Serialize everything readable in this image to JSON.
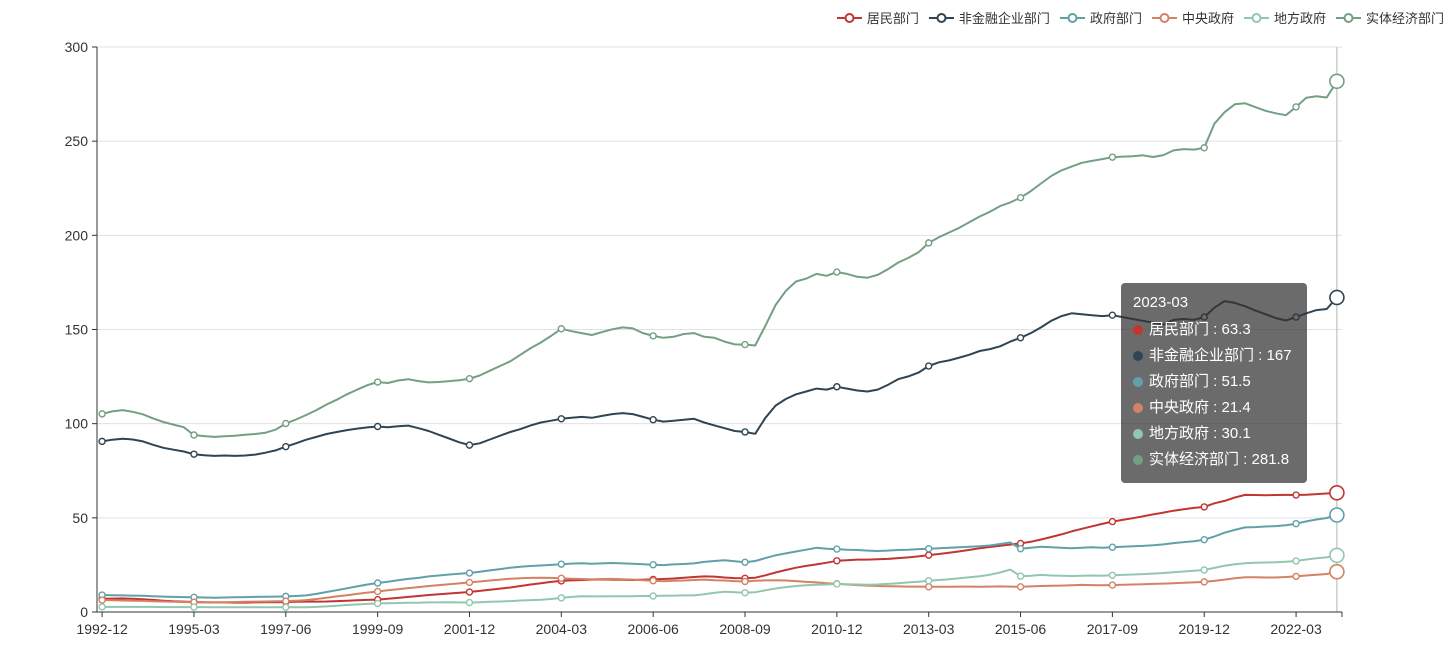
{
  "accent_colors": {
    "axis": "#333333",
    "grid_line": "#e0e0e6",
    "axis_pointer": "#b4b4b4",
    "tooltip_bg": "rgba(50,50,50,0.72)"
  },
  "legend": {
    "items": [
      {
        "label": "居民部门",
        "color": "#c23531"
      },
      {
        "label": "非金融企业部门",
        "color": "#2f4554"
      },
      {
        "label": "政府部门",
        "color": "#61a0a8"
      },
      {
        "label": "中央政府",
        "color": "#d48265"
      },
      {
        "label": "地方政府",
        "color": "#91c7ae"
      },
      {
        "label": "实体经济部门",
        "color": "#749f83"
      }
    ]
  },
  "tooltip": {
    "title": "2023-03",
    "separator": " : ",
    "rows": [
      {
        "label": "居民部门",
        "value": "63.3",
        "color": "#c23531"
      },
      {
        "label": "非金融企业部门",
        "value": "167",
        "color": "#2f4554"
      },
      {
        "label": "政府部门",
        "value": "51.5",
        "color": "#61a0a8"
      },
      {
        "label": "中央政府",
        "value": "21.4",
        "color": "#d48265"
      },
      {
        "label": "地方政府",
        "value": "30.1",
        "color": "#91c7ae"
      },
      {
        "label": "实体经济部门",
        "value": "281.8",
        "color": "#749f83"
      }
    ]
  },
  "chart_data": {
    "type": "line",
    "title": "",
    "xlabel": "",
    "ylabel": "",
    "grid": true,
    "legend_position": "top-right",
    "x_axis": {
      "type": "category-quarterly",
      "first_period": "1992-12",
      "last_period": "2023-03",
      "n_points": 122,
      "ticks": [
        {
          "index": 0,
          "label": "1992-12"
        },
        {
          "index": 9,
          "label": "1995-03"
        },
        {
          "index": 18,
          "label": "1997-06"
        },
        {
          "index": 27,
          "label": "1999-09"
        },
        {
          "index": 36,
          "label": "2001-12"
        },
        {
          "index": 45,
          "label": "2004-03"
        },
        {
          "index": 54,
          "label": "2006-06"
        },
        {
          "index": 63,
          "label": "2008-09"
        },
        {
          "index": 72,
          "label": "2010-12"
        },
        {
          "index": 81,
          "label": "2013-03"
        },
        {
          "index": 90,
          "label": "2015-06"
        },
        {
          "index": 99,
          "label": "2017-09"
        },
        {
          "index": 108,
          "label": "2019-12"
        },
        {
          "index": 117,
          "label": "2022-03"
        }
      ]
    },
    "y_axis": {
      "min": 0,
      "max": 300,
      "interval": 50,
      "tick_labels": [
        "0",
        "50",
        "100",
        "150",
        "200",
        "250",
        "300"
      ]
    },
    "highlight_index": 121,
    "series": [
      {
        "name": "居民部门",
        "color": "#c23531",
        "values": [
          7.0,
          7.1,
          7.2,
          7.0,
          6.8,
          6.4,
          6.0,
          5.7,
          5.5,
          5.3,
          5.2,
          5.1,
          5.1,
          5.0,
          5.0,
          5.1,
          5.2,
          5.2,
          5.3,
          5.4,
          5.5,
          5.5,
          5.6,
          5.8,
          6.0,
          6.2,
          6.4,
          6.6,
          7.0,
          7.5,
          8.0,
          8.5,
          9.0,
          9.4,
          9.8,
          10.2,
          10.6,
          11.2,
          11.8,
          12.4,
          13.0,
          13.8,
          14.6,
          15.3,
          16.0,
          16.5,
          16.8,
          17.0,
          17.2,
          17.3,
          17.2,
          17.1,
          17.0,
          17.2,
          17.3,
          17.5,
          17.8,
          18.2,
          18.6,
          18.9,
          18.8,
          18.3,
          18.0,
          17.9,
          18.2,
          19.5,
          21.0,
          22.3,
          23.5,
          24.5,
          25.3,
          26.2,
          27.2,
          27.5,
          27.8,
          27.8,
          28.0,
          28.2,
          28.6,
          29.0,
          29.5,
          30.2,
          30.8,
          31.5,
          32.2,
          33.0,
          33.8,
          34.5,
          35.2,
          35.8,
          36.4,
          37.3,
          38.5,
          39.8,
          41.2,
          42.8,
          44.2,
          45.5,
          46.8,
          48.0,
          48.9,
          49.8,
          50.8,
          51.8,
          52.8,
          53.8,
          54.6,
          55.3,
          55.8,
          57.7,
          59.0,
          60.8,
          62.2,
          62.1,
          62.0,
          62.1,
          62.2,
          62.1,
          62.3,
          62.6,
          62.9,
          63.3
        ]
      },
      {
        "name": "非金融企业部门",
        "color": "#2f4554",
        "values": [
          90.6,
          91.5,
          92.0,
          91.6,
          90.6,
          88.8,
          87.2,
          86.2,
          85.2,
          83.8,
          83.2,
          82.9,
          83.1,
          82.9,
          83.1,
          83.6,
          84.6,
          85.8,
          87.8,
          89.6,
          91.5,
          93.0,
          94.5,
          95.6,
          96.6,
          97.4,
          98.0,
          98.5,
          98.1,
          98.6,
          99.0,
          97.6,
          96.1,
          94.1,
          92.1,
          90.1,
          88.6,
          89.6,
          91.6,
          93.6,
          95.6,
          97.1,
          99.1,
          100.6,
          101.6,
          102.6,
          103.1,
          103.6,
          103.1,
          104.1,
          105.1,
          105.6,
          105.1,
          103.6,
          102.1,
          101.1,
          101.6,
          102.1,
          102.6,
          100.6,
          99.1,
          97.6,
          96.1,
          95.6,
          94.6,
          103.1,
          109.6,
          113.1,
          115.6,
          117.1,
          118.6,
          118.1,
          119.6,
          118.6,
          117.6,
          117.1,
          118.1,
          120.6,
          123.6,
          125.1,
          127.1,
          130.6,
          132.6,
          133.6,
          135.1,
          136.6,
          138.6,
          139.6,
          141.1,
          143.6,
          145.6,
          148.1,
          151.1,
          154.6,
          157.1,
          158.6,
          158.1,
          157.6,
          157.1,
          157.6,
          156.6,
          155.6,
          154.6,
          153.6,
          152.6,
          155.1,
          155.6,
          155.1,
          156.6,
          161.6,
          165.1,
          164.1,
          162.3,
          160.1,
          158.1,
          156.1,
          154.8,
          156.6,
          158.6,
          160.3,
          160.9,
          167.0
        ]
      },
      {
        "name": "政府部门",
        "color": "#61a0a8",
        "values": [
          9.0,
          8.9,
          8.8,
          8.7,
          8.6,
          8.4,
          8.2,
          8.0,
          7.9,
          7.8,
          7.7,
          7.6,
          7.7,
          7.8,
          7.9,
          8.0,
          8.1,
          8.2,
          8.3,
          8.5,
          8.8,
          9.6,
          10.6,
          11.6,
          12.6,
          13.6,
          14.6,
          15.4,
          16.1,
          16.9,
          17.6,
          18.1,
          18.9,
          19.4,
          19.9,
          20.3,
          20.7,
          21.4,
          22.1,
          22.8,
          23.5,
          24.0,
          24.4,
          24.7,
          25.0,
          25.4,
          25.7,
          25.9,
          25.6,
          25.8,
          26.0,
          25.8,
          25.6,
          25.4,
          25.1,
          24.9,
          25.3,
          25.5,
          25.8,
          26.6,
          27.1,
          27.5,
          26.9,
          26.4,
          27.1,
          28.6,
          30.1,
          31.1,
          32.1,
          33.1,
          34.1,
          33.6,
          33.4,
          33.1,
          32.9,
          32.6,
          32.4,
          32.6,
          32.9,
          33.1,
          33.4,
          33.6,
          33.9,
          34.1,
          34.4,
          34.6,
          34.9,
          35.3,
          36.1,
          36.9,
          33.6,
          34.1,
          34.6,
          34.4,
          34.1,
          33.9,
          34.1,
          34.4,
          34.1,
          34.4,
          34.6,
          34.9,
          35.1,
          35.4,
          35.9,
          36.6,
          37.1,
          37.6,
          38.4,
          40.1,
          42.1,
          43.6,
          44.9,
          45.1,
          45.4,
          45.6,
          46.1,
          46.9,
          48.1,
          49.1,
          49.9,
          51.5
        ]
      },
      {
        "name": "中央政府",
        "color": "#d48265",
        "values": [
          6.3,
          6.2,
          6.1,
          6.0,
          5.9,
          5.7,
          5.6,
          5.4,
          5.3,
          5.2,
          5.1,
          5.1,
          5.2,
          5.3,
          5.4,
          5.5,
          5.6,
          5.7,
          5.8,
          6.0,
          6.3,
          6.9,
          7.6,
          8.3,
          8.9,
          9.6,
          10.3,
          10.9,
          11.5,
          12.1,
          12.7,
          13.2,
          13.8,
          14.3,
          14.7,
          15.2,
          15.7,
          16.2,
          16.7,
          17.2,
          17.7,
          17.9,
          18.1,
          18.2,
          18.1,
          17.9,
          17.7,
          17.5,
          17.3,
          17.5,
          17.6,
          17.4,
          17.2,
          16.9,
          16.6,
          16.3,
          16.6,
          16.7,
          17.0,
          17.2,
          16.9,
          16.7,
          16.4,
          16.2,
          16.6,
          16.8,
          16.9,
          16.7,
          16.4,
          16.0,
          15.7,
          15.3,
          15.0,
          14.6,
          14.3,
          14.0,
          13.8,
          13.7,
          13.6,
          13.5,
          13.5,
          13.4,
          13.4,
          13.4,
          13.5,
          13.5,
          13.4,
          13.5,
          13.6,
          13.5,
          13.4,
          13.6,
          13.8,
          13.9,
          14.0,
          14.2,
          14.4,
          14.3,
          14.2,
          14.3,
          14.5,
          14.6,
          14.7,
          14.9,
          15.1,
          15.3,
          15.5,
          15.7,
          16.0,
          16.5,
          17.2,
          17.9,
          18.4,
          18.4,
          18.3,
          18.3,
          18.6,
          18.9,
          19.4,
          19.8,
          20.2,
          21.4
        ]
      },
      {
        "name": "地方政府",
        "color": "#91c7ae",
        "values": [
          2.7,
          2.7,
          2.7,
          2.7,
          2.7,
          2.7,
          2.6,
          2.6,
          2.6,
          2.6,
          2.6,
          2.5,
          2.5,
          2.5,
          2.5,
          2.5,
          2.5,
          2.5,
          2.5,
          2.5,
          2.5,
          2.7,
          3.0,
          3.3,
          3.7,
          4.0,
          4.3,
          4.5,
          4.6,
          4.8,
          4.9,
          4.9,
          5.1,
          5.1,
          5.2,
          5.1,
          5.0,
          5.2,
          5.4,
          5.6,
          5.8,
          6.1,
          6.3,
          6.5,
          6.9,
          7.5,
          8.0,
          8.4,
          8.3,
          8.3,
          8.4,
          8.4,
          8.4,
          8.5,
          8.5,
          8.6,
          8.7,
          8.8,
          8.8,
          9.4,
          10.2,
          10.8,
          10.5,
          10.2,
          10.5,
          11.5,
          12.5,
          13.2,
          13.8,
          14.2,
          14.5,
          14.6,
          14.9,
          14.7,
          14.6,
          14.5,
          14.6,
          14.9,
          15.3,
          15.7,
          16.1,
          16.6,
          17.0,
          17.4,
          17.9,
          18.4,
          19.0,
          19.8,
          21.0,
          22.5,
          19.0,
          19.3,
          19.7,
          19.4,
          19.2,
          19.1,
          19.3,
          19.4,
          19.3,
          19.5,
          19.7,
          19.9,
          20.1,
          20.4,
          20.7,
          21.1,
          21.5,
          21.9,
          22.3,
          23.4,
          24.6,
          25.4,
          25.9,
          26.1,
          26.3,
          26.4,
          26.7,
          27.1,
          27.9,
          28.5,
          29.0,
          30.1
        ]
      },
      {
        "name": "实体经济部门",
        "color": "#749f83",
        "values": [
          105.2,
          106.5,
          107.2,
          106.3,
          105.0,
          102.8,
          100.9,
          99.5,
          98.1,
          94.0,
          93.4,
          93.0,
          93.3,
          93.6,
          94.1,
          94.5,
          95.2,
          96.8,
          100.1,
          102.2,
          104.6,
          107.2,
          110.2,
          112.7,
          115.6,
          118.1,
          120.4,
          122.1,
          121.6,
          122.9,
          123.6,
          122.6,
          121.9,
          122.1,
          122.6,
          123.1,
          123.9,
          125.6,
          128.1,
          130.6,
          133.1,
          136.6,
          140.1,
          143.1,
          146.6,
          150.4,
          149.1,
          148.1,
          147.1,
          148.6,
          150.1,
          151.1,
          150.6,
          148.1,
          146.6,
          145.6,
          146.1,
          147.6,
          148.1,
          146.1,
          145.6,
          143.6,
          142.1,
          142.0,
          141.5,
          152.0,
          163.0,
          170.5,
          175.5,
          177.0,
          179.5,
          178.5,
          180.5,
          179.5,
          178.0,
          177.5,
          179.0,
          182.0,
          185.5,
          188.0,
          191.0,
          196.0,
          199.0,
          201.5,
          204.0,
          207.0,
          210.0,
          212.5,
          215.5,
          217.5,
          220.0,
          223.5,
          227.5,
          231.5,
          234.5,
          236.5,
          238.5,
          239.5,
          240.5,
          241.5,
          241.8,
          242.0,
          242.5,
          241.6,
          242.6,
          245.1,
          245.8,
          245.5,
          246.5,
          259.3,
          265.4,
          269.6,
          270.1,
          268.1,
          266.1,
          264.8,
          263.8,
          268.2,
          273.1,
          273.9,
          273.2,
          281.8
        ]
      }
    ]
  }
}
